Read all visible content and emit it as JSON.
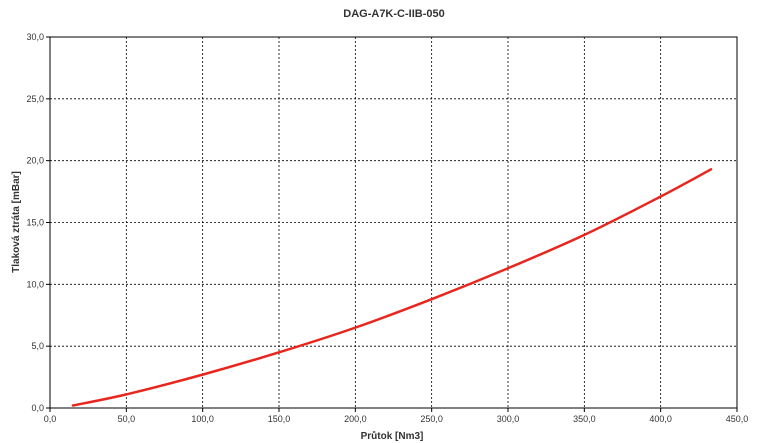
{
  "chart_data": {
    "type": "line",
    "title": "DAG-A7K-C-IIB-050",
    "xlabel": "Průtok [Nm3]",
    "ylabel": "Tlaková ztráta [mBar]",
    "xlim": [
      0,
      450
    ],
    "ylim": [
      0,
      30
    ],
    "x_ticks": [
      "0,0",
      "50,0",
      "100,0",
      "150,0",
      "200,0",
      "250,0",
      "300,0",
      "350,0",
      "400,0",
      "450,0"
    ],
    "y_ticks": [
      "0,0",
      "5,0",
      "10,0",
      "15,0",
      "20,0",
      "25,0",
      "30,0"
    ],
    "x_tick_values": [
      0,
      50,
      100,
      150,
      200,
      250,
      300,
      350,
      400,
      450
    ],
    "y_tick_values": [
      0,
      5,
      10,
      15,
      20,
      25,
      30
    ],
    "grid": true,
    "grid_style": "dashed",
    "legend": "none",
    "series": [
      {
        "color": "#e8261e",
        "x": [
          15,
          50,
          100,
          150,
          200,
          250,
          300,
          350,
          400,
          433
        ],
        "y": [
          0.2,
          1.1,
          2.7,
          4.5,
          6.5,
          8.8,
          11.3,
          14.0,
          17.1,
          19.3
        ]
      }
    ]
  }
}
